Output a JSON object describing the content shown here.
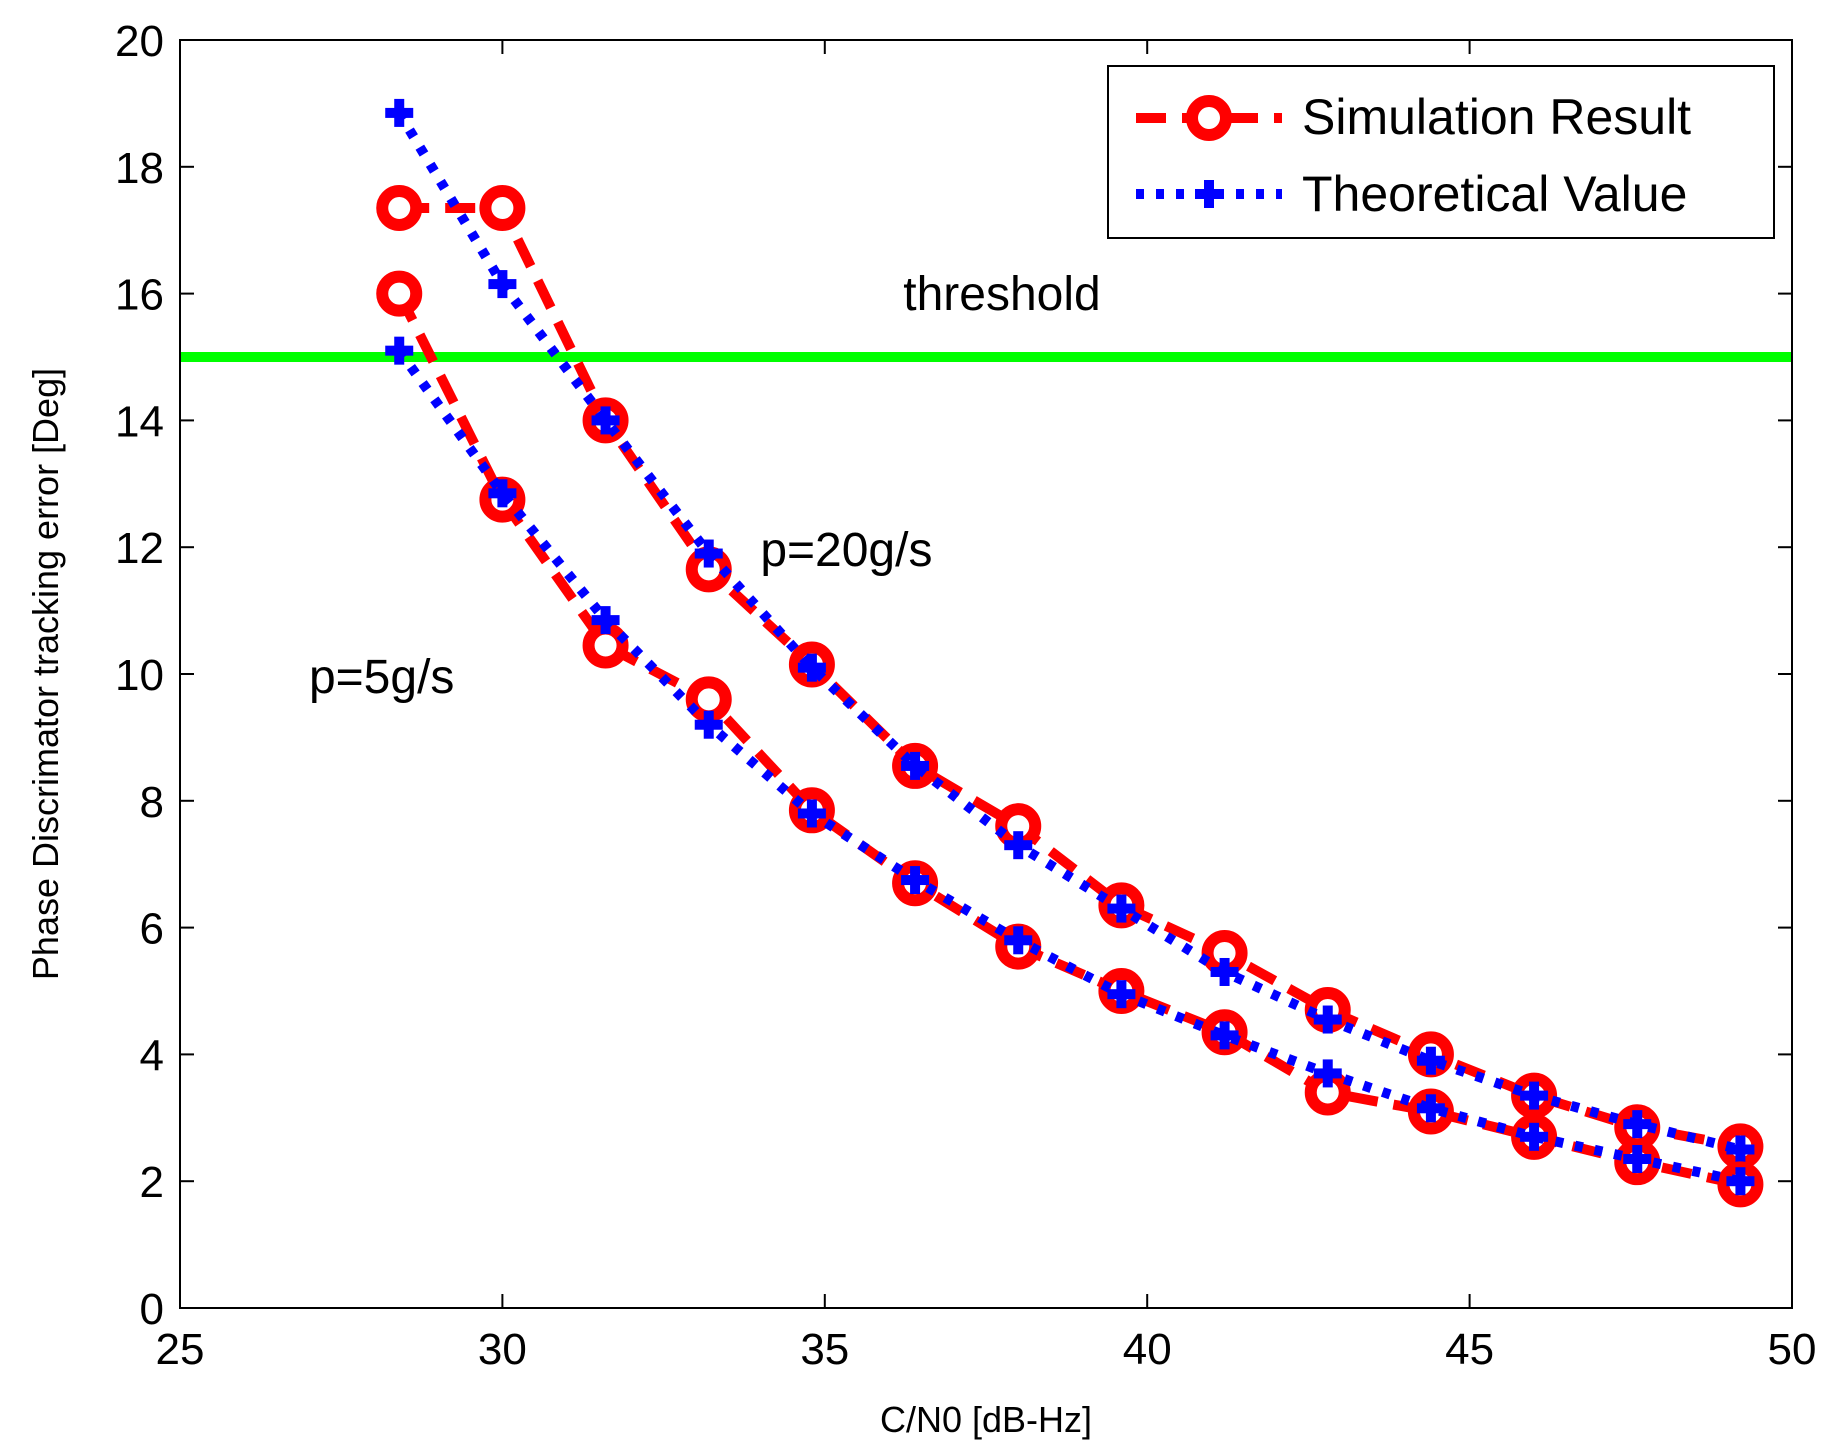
{
  "chart_data": {
    "type": "line",
    "xlabel": "C/N0 [dB-Hz]",
    "ylabel": "Phase Discrimator tracking error [Deg]",
    "xlim": [
      25,
      50
    ],
    "ylim": [
      0,
      20
    ],
    "xticks": [
      25,
      30,
      35,
      40,
      45,
      50
    ],
    "yticks": [
      0,
      2,
      4,
      6,
      8,
      10,
      12,
      14,
      16,
      18,
      20
    ],
    "grid": false,
    "legend_position": "top-right",
    "colors": {
      "simulation": "#ff0000",
      "theoretical": "#0000ff",
      "threshold": "#00ff00"
    },
    "threshold": {
      "value": 15,
      "label": "threshold"
    },
    "annotations": [
      {
        "text": "p=20g/s",
        "x": 34,
        "y": 11.7
      },
      {
        "text": "p=5g/s",
        "x": 27,
        "y": 9.7
      }
    ],
    "x": [
      28.4,
      30,
      31.6,
      33.2,
      34.8,
      36.4,
      38,
      39.6,
      41.2,
      42.8,
      44.4,
      46,
      47.6,
      49.2
    ],
    "series": [
      {
        "name": "Simulation Result",
        "group": "p=20g/s",
        "style": "simulation",
        "values": [
          17.35,
          17.35,
          14.0,
          11.65,
          10.15,
          8.55,
          7.6,
          6.35,
          5.6,
          4.7,
          4.0,
          3.35,
          2.85,
          2.55
        ]
      },
      {
        "name": "Theoretical Value",
        "group": "p=20g/s",
        "style": "theoretical",
        "values": [
          18.85,
          16.15,
          14.0,
          11.9,
          10.1,
          8.55,
          7.3,
          6.3,
          5.3,
          4.55,
          3.9,
          3.35,
          2.9,
          2.5
        ]
      },
      {
        "name": "Simulation Result",
        "group": "p=5g/s",
        "style": "simulation",
        "values": [
          16.0,
          12.75,
          10.45,
          9.6,
          7.85,
          6.7,
          5.7,
          5.0,
          4.35,
          3.4,
          3.1,
          2.7,
          2.3,
          1.95
        ]
      },
      {
        "name": "Theoretical Value",
        "group": "p=5g/s",
        "style": "theoretical",
        "values": [
          15.1,
          12.85,
          10.85,
          9.2,
          7.8,
          6.75,
          5.8,
          4.95,
          4.3,
          3.7,
          3.15,
          2.7,
          2.35,
          2.0
        ]
      }
    ],
    "legend": [
      {
        "label": "Simulation Result",
        "style": "simulation"
      },
      {
        "label": "Theoretical Value",
        "style": "theoretical"
      }
    ]
  }
}
